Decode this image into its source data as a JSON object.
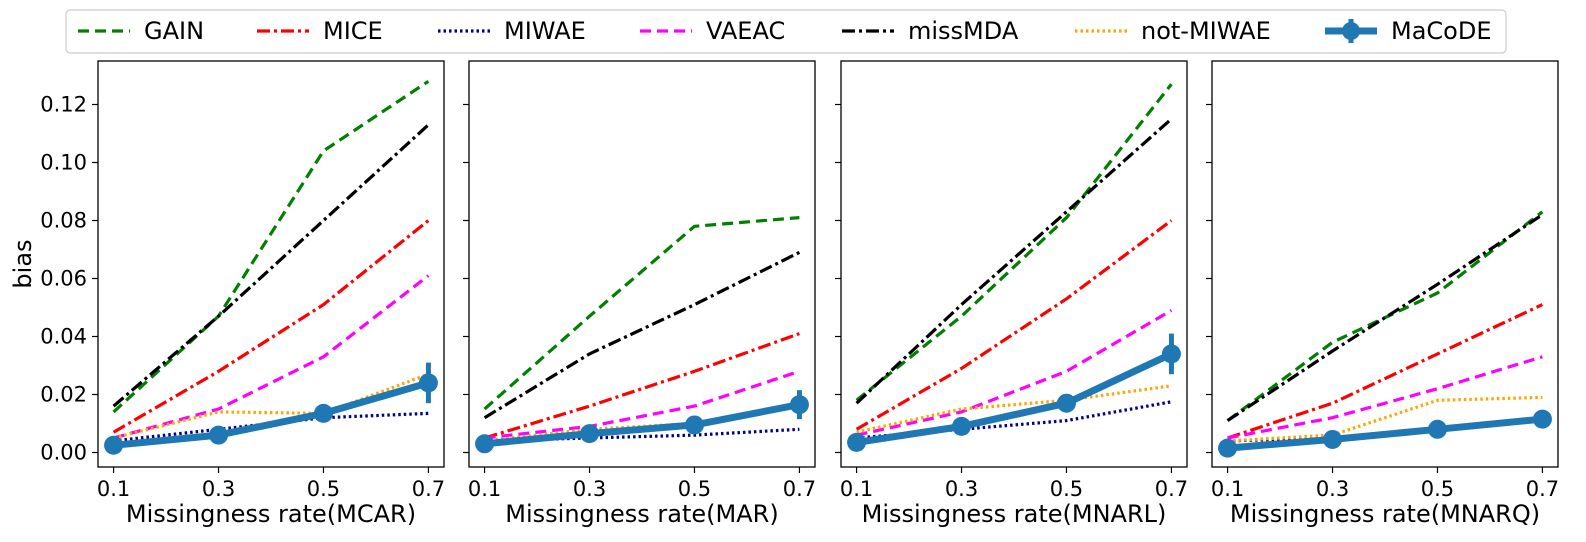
{
  "colors": {
    "GAIN": "#008000",
    "MICE": "#ff0000",
    "MIWAE": "#00008b",
    "VAEAC": "#ff00ff",
    "missMDA": "#000000",
    "not-MIWAE": "#ffa500",
    "MaCoDE": "#1f77b4"
  },
  "legend": {
    "entries": [
      "GAIN",
      "MICE",
      "MIWAE",
      "VAEAC",
      "missMDA",
      "not-MIWAE",
      "MaCoDE"
    ]
  },
  "chart_data": [
    {
      "type": "line",
      "xlabel": "Missingness rate(MCAR)",
      "ylabel": "bias",
      "x": [
        0.1,
        0.3,
        0.5,
        0.7
      ],
      "x_tick_labels": [
        "0.1",
        "0.3",
        "0.5",
        "0.7"
      ],
      "ylim": [
        -0.005,
        0.135
      ],
      "y_ticks": [
        0.0,
        0.02,
        0.04,
        0.06,
        0.08,
        0.1,
        0.12
      ],
      "y_tick_labels": [
        "0.00",
        "0.02",
        "0.04",
        "0.06",
        "0.08",
        "0.10",
        "0.12"
      ],
      "series": [
        {
          "name": "GAIN",
          "values": [
            0.014,
            0.047,
            0.104,
            0.128
          ]
        },
        {
          "name": "MICE",
          "values": [
            0.007,
            0.028,
            0.051,
            0.08
          ]
        },
        {
          "name": "MIWAE",
          "values": [
            0.004,
            0.008,
            0.012,
            0.0135
          ]
        },
        {
          "name": "VAEAC",
          "values": [
            0.005,
            0.015,
            0.033,
            0.061
          ]
        },
        {
          "name": "missMDA",
          "values": [
            0.016,
            0.047,
            0.08,
            0.113
          ]
        },
        {
          "name": "not-MIWAE",
          "values": [
            0.005,
            0.014,
            0.0135,
            0.027
          ]
        },
        {
          "name": "MaCoDE",
          "values": [
            0.0025,
            0.006,
            0.0135,
            0.024
          ],
          "errors": [
            0.0015,
            0.0015,
            0.003,
            0.007
          ]
        }
      ]
    },
    {
      "type": "line",
      "xlabel": "Missingness rate(MAR)",
      "ylabel": "",
      "x": [
        0.1,
        0.3,
        0.5,
        0.7
      ],
      "x_tick_labels": [
        "0.1",
        "0.3",
        "0.5",
        "0.7"
      ],
      "ylim": [
        -0.005,
        0.135
      ],
      "y_ticks": [
        0.0,
        0.02,
        0.04,
        0.06,
        0.08,
        0.1,
        0.12
      ],
      "y_tick_labels": [],
      "series": [
        {
          "name": "GAIN",
          "values": [
            0.015,
            0.047,
            0.078,
            0.081
          ]
        },
        {
          "name": "MICE",
          "values": [
            0.005,
            0.016,
            0.028,
            0.041
          ]
        },
        {
          "name": "MIWAE",
          "values": [
            0.004,
            0.005,
            0.006,
            0.008
          ]
        },
        {
          "name": "VAEAC",
          "values": [
            0.005,
            0.009,
            0.016,
            0.028
          ]
        },
        {
          "name": "missMDA",
          "values": [
            0.012,
            0.034,
            0.051,
            0.069
          ]
        },
        {
          "name": "not-MIWAE",
          "values": [
            0.004,
            0.008,
            0.01,
            0.017
          ]
        },
        {
          "name": "MaCoDE",
          "values": [
            0.003,
            0.0065,
            0.0095,
            0.0165
          ],
          "errors": [
            0.001,
            0.001,
            0.0015,
            0.005
          ]
        }
      ]
    },
    {
      "type": "line",
      "xlabel": "Missingness rate(MNARL)",
      "ylabel": "",
      "x": [
        0.1,
        0.3,
        0.5,
        0.7
      ],
      "x_tick_labels": [
        "0.1",
        "0.3",
        "0.5",
        "0.7"
      ],
      "ylim": [
        -0.005,
        0.135
      ],
      "y_ticks": [
        0.0,
        0.02,
        0.04,
        0.06,
        0.08,
        0.1,
        0.12
      ],
      "y_tick_labels": [],
      "series": [
        {
          "name": "GAIN",
          "values": [
            0.018,
            0.047,
            0.081,
            0.127
          ]
        },
        {
          "name": "MICE",
          "values": [
            0.008,
            0.029,
            0.053,
            0.08
          ]
        },
        {
          "name": "MIWAE",
          "values": [
            0.005,
            0.008,
            0.011,
            0.0175
          ]
        },
        {
          "name": "VAEAC",
          "values": [
            0.006,
            0.014,
            0.028,
            0.049
          ]
        },
        {
          "name": "missMDA",
          "values": [
            0.017,
            0.051,
            0.083,
            0.115
          ]
        },
        {
          "name": "not-MIWAE",
          "values": [
            0.007,
            0.015,
            0.018,
            0.023
          ]
        },
        {
          "name": "MaCoDE",
          "values": [
            0.0035,
            0.009,
            0.017,
            0.034
          ],
          "errors": [
            0.001,
            0.001,
            0.003,
            0.007
          ]
        }
      ]
    },
    {
      "type": "line",
      "xlabel": "Missingness rate(MNARQ)",
      "ylabel": "",
      "x": [
        0.1,
        0.3,
        0.5,
        0.7
      ],
      "x_tick_labels": [
        "0.1",
        "0.3",
        "0.5",
        "0.7"
      ],
      "ylim": [
        -0.005,
        0.135
      ],
      "y_ticks": [
        0.0,
        0.02,
        0.04,
        0.06,
        0.08,
        0.1,
        0.12
      ],
      "y_tick_labels": [],
      "series": [
        {
          "name": "GAIN",
          "values": [
            0.011,
            0.038,
            0.055,
            0.083
          ]
        },
        {
          "name": "MICE",
          "values": [
            0.005,
            0.017,
            0.034,
            0.051
          ]
        },
        {
          "name": "MIWAE",
          "values": [
            0.004,
            0.005,
            0.008,
            0.011
          ]
        },
        {
          "name": "VAEAC",
          "values": [
            0.005,
            0.012,
            0.022,
            0.033
          ]
        },
        {
          "name": "missMDA",
          "values": [
            0.011,
            0.035,
            0.058,
            0.082
          ]
        },
        {
          "name": "not-MIWAE",
          "values": [
            0.004,
            0.006,
            0.018,
            0.019
          ]
        },
        {
          "name": "MaCoDE",
          "values": [
            0.0015,
            0.0045,
            0.008,
            0.0115
          ],
          "errors": [
            0.0005,
            0.0005,
            0.001,
            0.0015
          ]
        }
      ]
    }
  ]
}
